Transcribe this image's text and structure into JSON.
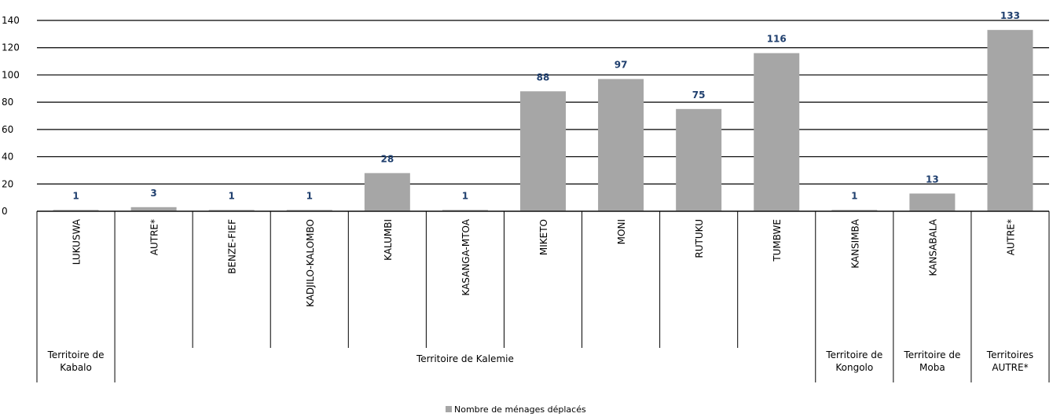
{
  "chart_data": {
    "type": "bar",
    "categories": [
      "LUKUSWA",
      "AUTRE*",
      "BENZE-FIEF",
      "KADJILO-KALOMBO",
      "KALUMBI",
      "KASANGA-MTOA",
      "MIKETO",
      "MONI",
      "RUTUKU",
      "TUMBWE",
      "KANSIMBA",
      "KANSABALA",
      "AUTRE*"
    ],
    "groups": [
      {
        "lines": [
          "Territoire de",
          "Kabalo"
        ],
        "span": 1
      },
      {
        "lines": [
          "Territoire de Kalemie"
        ],
        "span": 9
      },
      {
        "lines": [
          "Territoire de",
          "Kongolo"
        ],
        "span": 1
      },
      {
        "lines": [
          "Territoire de",
          "Moba"
        ],
        "span": 1
      },
      {
        "lines": [
          "Territoires",
          "AUTRE*"
        ],
        "span": 1
      }
    ],
    "series": [
      {
        "name": "Nombre de ménages déplacés",
        "values": [
          1,
          3,
          1,
          1,
          28,
          1,
          88,
          97,
          75,
          116,
          1,
          13,
          133
        ]
      }
    ],
    "ylim": [
      0,
      140
    ],
    "yticks": [
      0,
      20,
      40,
      60,
      80,
      100,
      120,
      140
    ],
    "grid": true,
    "legend": "bottom-center",
    "colors": {
      "bar": "#a6a6a6",
      "label": "#1f3f6e",
      "grid": "#000000"
    }
  }
}
